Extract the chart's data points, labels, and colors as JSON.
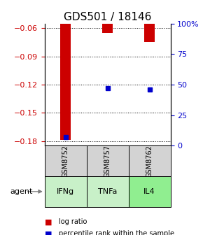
{
  "title": "GDS501 / 18146",
  "samples": [
    "GSM8752",
    "GSM8757",
    "GSM8762"
  ],
  "agents": [
    "IFNg",
    "TNFa",
    "IL4"
  ],
  "log_ratios": [
    -0.179,
    -0.065,
    -0.075
  ],
  "percentile_ranks": [
    7,
    47,
    46
  ],
  "ylim_left": [
    -0.185,
    -0.055
  ],
  "yticks_left": [
    -0.18,
    -0.15,
    -0.12,
    -0.09,
    -0.06
  ],
  "ylim_right": [
    0,
    100
  ],
  "yticks_right": [
    0,
    25,
    50,
    75,
    100
  ],
  "bar_color": "#cc0000",
  "percentile_color": "#0000cc",
  "agent_colors": [
    "#c8f0c8",
    "#c8f0c8",
    "#90ee90"
  ],
  "sample_bg": "#d3d3d3",
  "left_tick_color": "#cc0000",
  "right_tick_color": "#0000cc",
  "bar_width": 0.25,
  "tick_fontsize": 8,
  "title_fontsize": 11,
  "sample_fontsize": 7,
  "agent_fontsize": 8,
  "legend_fontsize": 7
}
